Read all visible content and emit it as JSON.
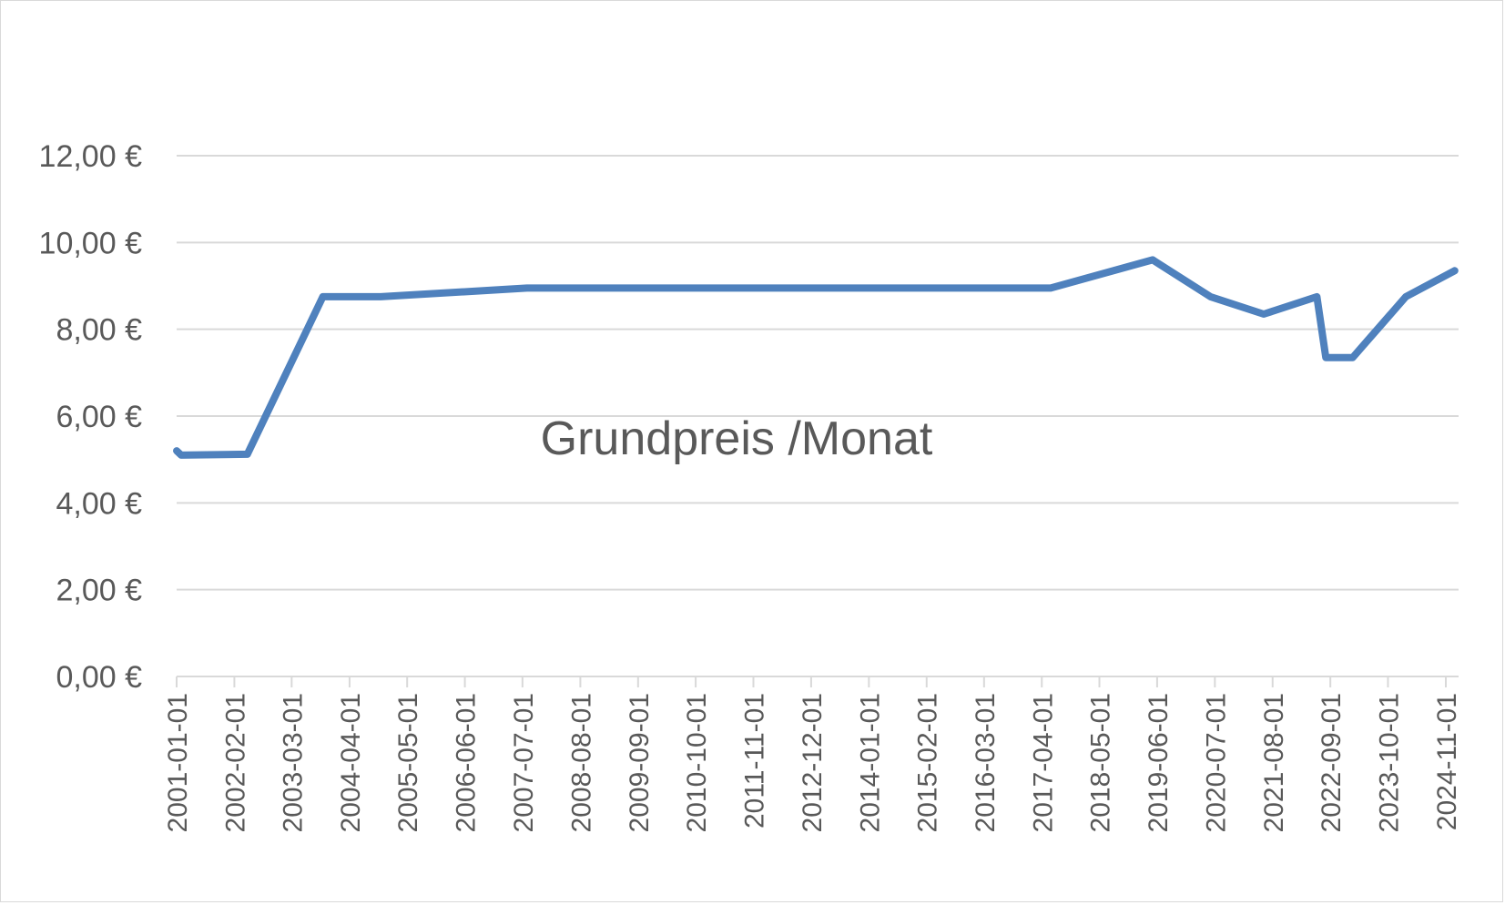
{
  "chart_data": {
    "type": "line",
    "title": "Grundpreis /Monat",
    "xlabel": "",
    "ylabel": "",
    "ylim": [
      0,
      12
    ],
    "y_ticks": [
      "0,00 €",
      "2,00 €",
      "4,00 €",
      "6,00 €",
      "8,00 €",
      "10,00 €",
      "12,00 €"
    ],
    "grid": true,
    "legend": "none",
    "line_color": "#4f81bd",
    "x_tick_labels": [
      "2001-01-01",
      "2002-02-01",
      "2003-03-01",
      "2004-04-01",
      "2005-05-01",
      "2006-06-01",
      "2007-07-01",
      "2008-08-01",
      "2009-09-01",
      "2010-10-01",
      "2011-11-01",
      "2012-12-01",
      "2014-01-01",
      "2015-02-01",
      "2016-03-01",
      "2017-04-01",
      "2018-05-01",
      "2019-06-01",
      "2020-07-01",
      "2021-08-01",
      "2022-09-01",
      "2023-10-01",
      "2024-11-01"
    ],
    "x": [
      "2001-01-01",
      "2001-02-01",
      "2002-05-01",
      "2003-10-01",
      "2004-11-01",
      "2007-08-01",
      "2017-06-01",
      "2019-05-01",
      "2020-06-01",
      "2021-06-01",
      "2022-06-01",
      "2022-08-01",
      "2023-02-01",
      "2024-02-01",
      "2025-01-01"
    ],
    "values": [
      5.2,
      5.1,
      5.12,
      8.75,
      8.75,
      8.95,
      8.95,
      9.6,
      8.75,
      8.35,
      8.75,
      7.35,
      7.35,
      8.75,
      9.35
    ]
  }
}
